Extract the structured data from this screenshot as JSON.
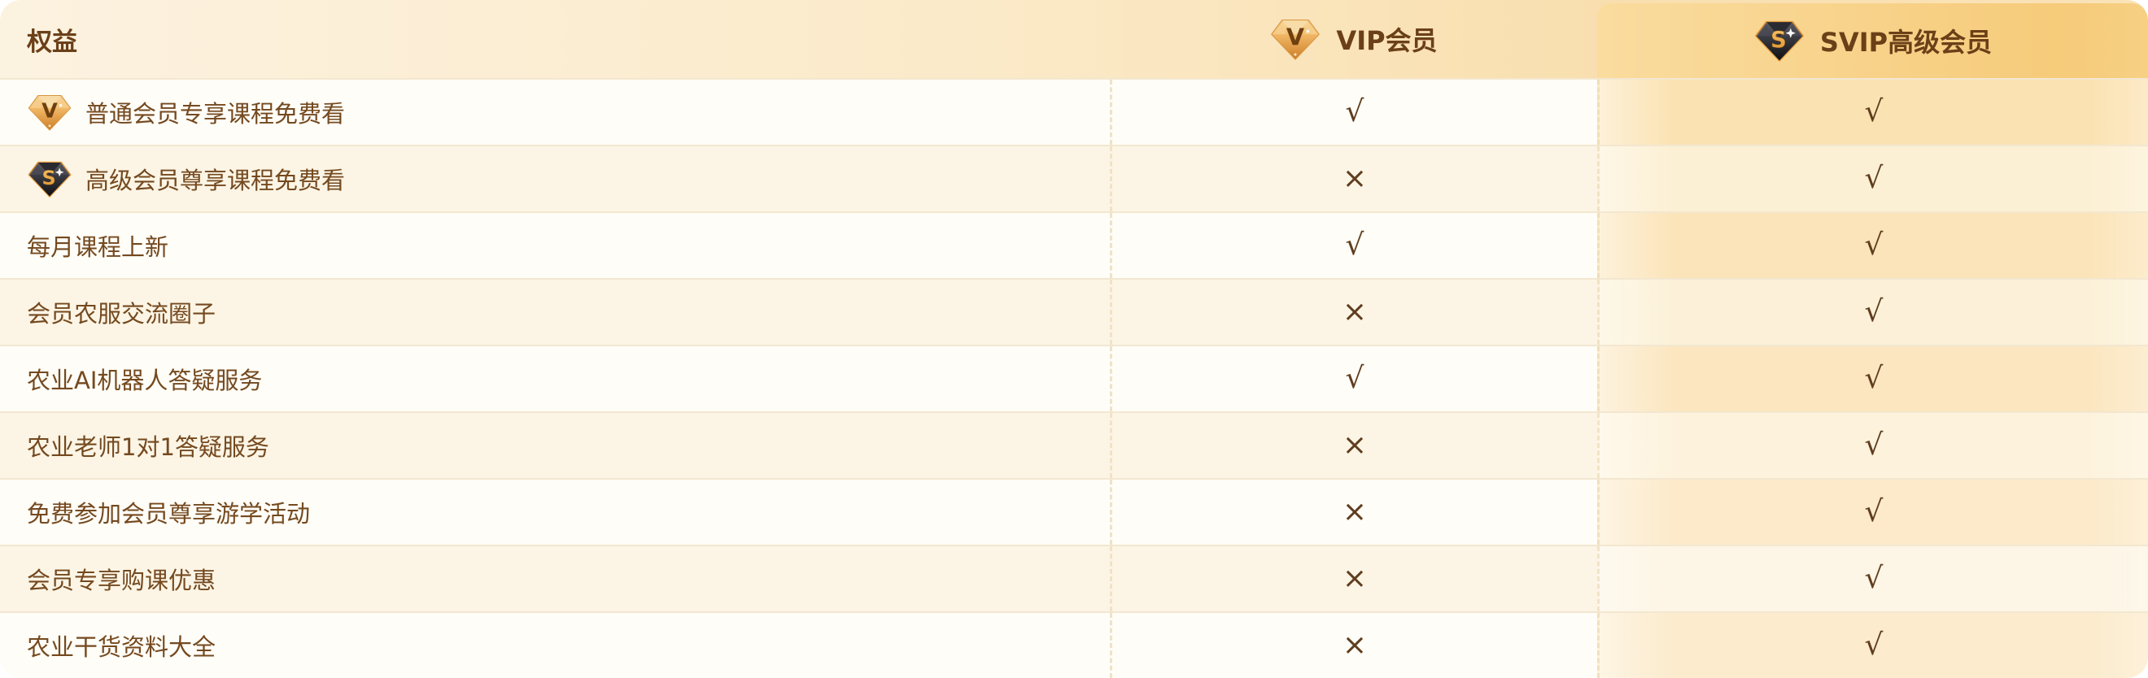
{
  "header": {
    "benefit_label": "权益",
    "vip_label": "VIP会员",
    "vip_icon": "vip-gem-icon",
    "svip_label": "SVIP高级会员",
    "svip_icon": "svip-gem-icon"
  },
  "marks": {
    "included": "√",
    "excluded": "×"
  },
  "rows": [
    {
      "label": "普通会员专享课程免费看",
      "icon": "vip-gem-icon",
      "vip_mark": "√",
      "svip_mark": "√"
    },
    {
      "label": "高级会员尊享课程免费看",
      "icon": "svip-gem-icon",
      "vip_mark": "×",
      "svip_mark": "√"
    },
    {
      "label": "每月课程上新",
      "icon": null,
      "vip_mark": "√",
      "svip_mark": "√"
    },
    {
      "label": "会员农服交流圈子",
      "icon": null,
      "vip_mark": "×",
      "svip_mark": "√"
    },
    {
      "label": "农业AI机器人答疑服务",
      "icon": null,
      "vip_mark": "√",
      "svip_mark": "√"
    },
    {
      "label": "农业老师1对1答疑服务",
      "icon": null,
      "vip_mark": "×",
      "svip_mark": "√"
    },
    {
      "label": "免费参加会员尊享游学活动",
      "icon": null,
      "vip_mark": "×",
      "svip_mark": "√"
    },
    {
      "label": "会员专享购课优惠",
      "icon": null,
      "vip_mark": "×",
      "svip_mark": "√"
    },
    {
      "label": "农业干货资料大全",
      "icon": null,
      "vip_mark": "×",
      "svip_mark": "√"
    }
  ],
  "colors": {
    "text_brown": "#74491F",
    "header_brown": "#6B4018",
    "mark_brown": "#5F3D1E",
    "row_white": "#FFFDF7",
    "row_cream": "#FCF5E5",
    "separator": "#F3E7D0",
    "dashed_divider": "#EFE3C6",
    "header_bg_left": "#FCF2E0",
    "header_bg_right": "#F9DFAF",
    "svip_gold_start": "#FADC9F",
    "svip_gold_end": "#F6CB7A"
  }
}
